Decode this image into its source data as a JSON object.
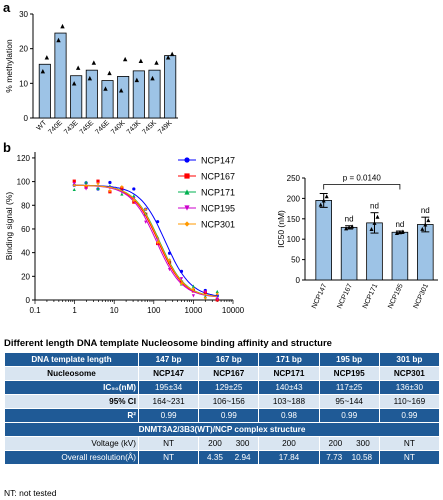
{
  "panels": {
    "a": "a",
    "b": "b"
  },
  "chart_data": [
    {
      "type": "bar",
      "ylabel": "% methylation",
      "ylim": [
        0,
        30
      ],
      "yticks": [
        "0",
        "10",
        "20",
        "30"
      ],
      "categories": [
        "WT",
        "740E",
        "743E",
        "745E",
        "746E",
        "740K",
        "743K",
        "745K",
        "749K"
      ],
      "values": [
        15.5,
        24.5,
        12.2,
        13.8,
        10.8,
        12.0,
        13.6,
        13.8,
        18.0
      ],
      "points": [
        [
          13.5,
          17.5
        ],
        [
          22.5,
          26.5
        ],
        [
          10.0,
          14.5
        ],
        [
          11.5,
          16.0
        ],
        [
          8.5,
          13.0
        ],
        [
          8.0,
          17.0
        ],
        [
          11.0,
          16.5
        ],
        [
          11.5,
          16.0
        ],
        [
          17.5,
          18.5
        ]
      ]
    },
    {
      "type": "line",
      "ylabel": "Binding signal (%)",
      "ylim": [
        0,
        125
      ],
      "yticks": [
        "0",
        "20",
        "40",
        "60",
        "80",
        "100",
        "120"
      ],
      "xscale": "log",
      "xlim": [
        0.1,
        10000
      ],
      "xticks": [
        "0.1",
        "1",
        "10",
        "100",
        "1000",
        "10000"
      ],
      "legend_position": "right",
      "series": [
        {
          "name": "NCP147",
          "color": "#0000ff",
          "ic50": 195,
          "marker": "circle"
        },
        {
          "name": "NCP167",
          "color": "#ff0000",
          "ic50": 129,
          "marker": "square"
        },
        {
          "name": "NCP171",
          "color": "#00b050",
          "ic50": 140,
          "marker": "triangle"
        },
        {
          "name": "NCP195",
          "color": "#cc00cc",
          "ic50": 117,
          "marker": "triangle-down"
        },
        {
          "name": "NCP301",
          "color": "#ff9900",
          "ic50": 136,
          "marker": "diamond"
        }
      ],
      "x_points": [
        0.98,
        1.95,
        3.9,
        7.8,
        15.6,
        31.3,
        62.5,
        125,
        250,
        500,
        1000,
        2000,
        4000
      ]
    },
    {
      "type": "bar",
      "ylabel": "IC50 (nM)",
      "ylim": [
        0,
        250
      ],
      "yticks": [
        "0",
        "50",
        "100",
        "150",
        "200",
        "250"
      ],
      "categories": [
        "NCP147",
        "NCP167",
        "NCP171",
        "NCP195",
        "NCP301"
      ],
      "values": [
        195,
        129,
        140,
        117,
        136
      ],
      "errors": [
        17,
        4,
        25,
        3,
        18
      ],
      "annotations": [
        "",
        "nd",
        "nd",
        "nd",
        "nd"
      ],
      "pvalue_label": "p = 0.0140"
    }
  ],
  "table": {
    "title": "Different length DNA template Nucleosome binding affinity and structure",
    "rows": [
      {
        "label": "DNA template length",
        "cells": [
          "147 bp",
          "167 bp",
          "171 bp",
          "195 bp",
          "301 bp"
        ]
      },
      {
        "label": "Nucleosome",
        "cells": [
          "NCP147",
          "NCP167",
          "NCP171",
          "NCP195",
          "NCP301"
        ]
      },
      {
        "label": "IC₅₀(nM)",
        "cells": [
          "195±34",
          "129±25",
          "140±43",
          "117±25",
          "136±30"
        ]
      },
      {
        "label": "95% CI",
        "cells": [
          "164~231",
          "106~156",
          "103~188",
          "95~144",
          "110~169"
        ]
      },
      {
        "label": "R²",
        "cells": [
          "0.99",
          "0.99",
          "0.98",
          "0.99",
          "0.99"
        ]
      }
    ],
    "structure_header": "DNMT3A2/3B3(WT)/NCP complex structure",
    "voltage": {
      "label": "Voltage (kV)",
      "cells": [
        [
          "NT"
        ],
        [
          "200",
          "300"
        ],
        [
          "200"
        ],
        [
          "200",
          "300"
        ],
        [
          "NT"
        ]
      ]
    },
    "resolution": {
      "label": "Overall resolution(Å)",
      "cells": [
        [
          "NT"
        ],
        [
          "4.35",
          "2.94"
        ],
        [
          "17.84"
        ],
        [
          "7.73",
          "10.58"
        ],
        [
          "NT"
        ]
      ]
    }
  },
  "footnote": "NT: not tested"
}
